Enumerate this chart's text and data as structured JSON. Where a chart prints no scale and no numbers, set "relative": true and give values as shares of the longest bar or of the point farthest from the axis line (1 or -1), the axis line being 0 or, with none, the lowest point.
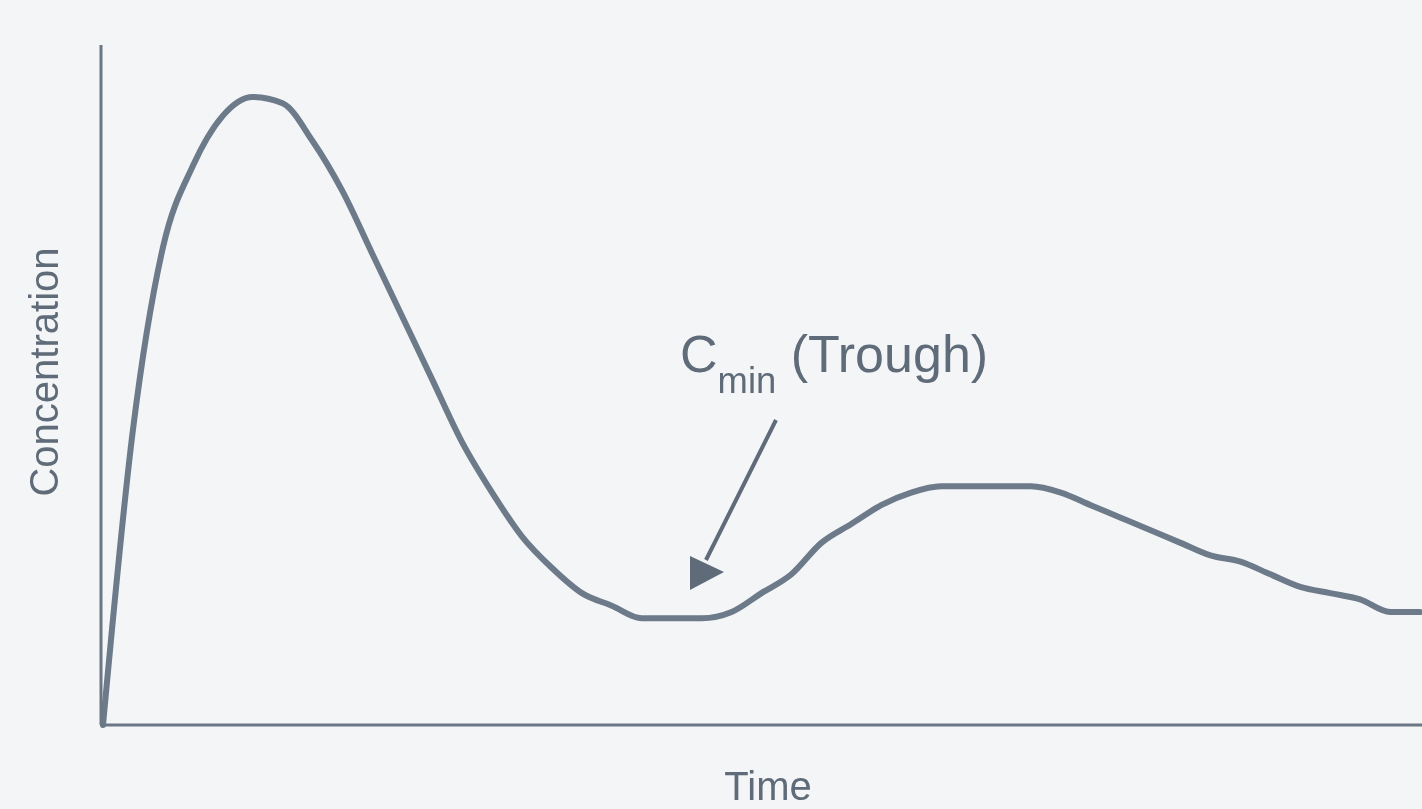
{
  "chart_data": {
    "type": "line",
    "relative": true,
    "xlabel": "Time",
    "ylabel": "Concentration",
    "annotations": [
      "C$_{min}$ (Trough)"
    ],
    "categories": [
      null,
      null,
      null,
      null,
      null,
      null,
      null,
      null,
      null,
      null,
      null,
      null,
      null,
      null,
      null,
      null,
      null,
      null,
      null,
      null,
      null,
      null,
      null,
      null,
      null,
      null,
      null,
      null,
      null,
      null,
      null,
      null,
      null,
      null,
      null,
      null,
      null,
      null,
      null,
      null,
      null,
      null,
      null,
      null,
      null
    ],
    "series": [
      {
        "color": "#6c7a89",
        "values": [
          0,
          0.47,
          0.76,
          0.89,
          0.97,
          1.0,
          0.99,
          0.93,
          0.85,
          0.75,
          0.65,
          0.55,
          0.45,
          0.37,
          0.3,
          0.25,
          0.21,
          0.19,
          0.17,
          0.17,
          0.17,
          0.18,
          0.21,
          0.24,
          0.29,
          0.32,
          0.35,
          0.37,
          0.38,
          0.38,
          0.38,
          0.38,
          0.37,
          0.35,
          0.33,
          0.31,
          0.29,
          0.27,
          0.26,
          0.24,
          0.22,
          0.21,
          0.2,
          0.18,
          0.18
        ]
      }
    ]
  }
}
